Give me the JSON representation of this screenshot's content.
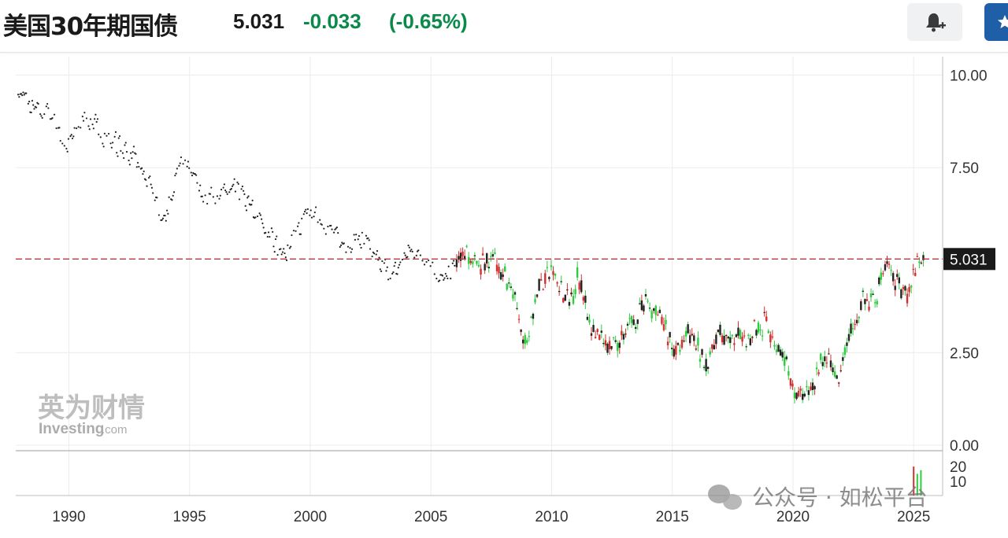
{
  "header": {
    "title": "美国30年期国债",
    "price": "5.031",
    "change": "-0.033",
    "change_pct": "(-0.65%)",
    "change_color": "#0a8a4a"
  },
  "buttons": {
    "alert_icon": "bell-plus-icon",
    "watchlist_icon": "star-icon"
  },
  "watermark": {
    "logo_cn": "英为财情",
    "logo_en": "Investing",
    "logo_en_suffix": ".com",
    "wechat": "公众号 · 如松平台",
    "wechat_icon": "wechat-icon"
  },
  "chart_data": {
    "type": "candlestick",
    "title": "",
    "xlabel": "",
    "ylabel": "",
    "x_ticks": [
      "1990",
      "1995",
      "2000",
      "2005",
      "2010",
      "2015",
      "2020",
      "2025"
    ],
    "y_ticks": [
      "10.00",
      "7.50",
      "5.031",
      "2.50",
      "0.00"
    ],
    "y_tick_values": [
      10.0,
      7.5,
      2.5,
      0.0
    ],
    "ylim": [
      0,
      10.5
    ],
    "xlim": [
      1987.8,
      2026.2
    ],
    "current_value": 5.031,
    "current_label": "5.031",
    "volume_ticks": [
      "20",
      "10"
    ],
    "colors": {
      "up": "#2ecc40",
      "down": "#d32f2f",
      "body": "#222222",
      "ref_line": "#b53a3a"
    },
    "grid": true,
    "monthly_yield_anchors": [
      [
        1987.9,
        9.7
      ],
      [
        1988.5,
        9.1
      ],
      [
        1989.3,
        8.9
      ],
      [
        1989.9,
        8.0
      ],
      [
        1990.7,
        8.9
      ],
      [
        1991.5,
        8.3
      ],
      [
        1992.3,
        8.0
      ],
      [
        1993.0,
        7.5
      ],
      [
        1993.9,
        6.1
      ],
      [
        1994.8,
        7.9
      ],
      [
        1995.6,
        6.7
      ],
      [
        1996.4,
        6.8
      ],
      [
        1997.0,
        6.9
      ],
      [
        1997.6,
        6.3
      ],
      [
        1998.3,
        5.8
      ],
      [
        1998.8,
        5.1
      ],
      [
        1999.5,
        5.8
      ],
      [
        2000.0,
        6.4
      ],
      [
        2000.8,
        5.8
      ],
      [
        2001.5,
        5.4
      ],
      [
        2002.2,
        5.7
      ],
      [
        2002.8,
        4.9
      ],
      [
        2003.4,
        4.6
      ],
      [
        2004.0,
        5.2
      ],
      [
        2004.6,
        5.2
      ],
      [
        2005.5,
        4.4
      ],
      [
        2006.4,
        5.2
      ],
      [
        2007.0,
        4.8
      ],
      [
        2007.5,
        5.1
      ],
      [
        2008.2,
        4.5
      ],
      [
        2008.9,
        2.7
      ],
      [
        2009.4,
        4.2
      ],
      [
        2010.0,
        4.7
      ],
      [
        2010.7,
        3.8
      ],
      [
        2011.1,
        4.6
      ],
      [
        2011.8,
        2.9
      ],
      [
        2012.5,
        2.6
      ],
      [
        2013.1,
        3.1
      ],
      [
        2013.9,
        3.9
      ],
      [
        2014.6,
        3.3
      ],
      [
        2015.1,
        2.4
      ],
      [
        2015.6,
        3.0
      ],
      [
        2016.5,
        2.2
      ],
      [
        2016.9,
        3.0
      ],
      [
        2017.6,
        2.8
      ],
      [
        2018.4,
        3.1
      ],
      [
        2018.9,
        3.3
      ],
      [
        2019.7,
        2.1
      ],
      [
        2020.2,
        1.3
      ],
      [
        2020.8,
        1.5
      ],
      [
        2021.2,
        2.3
      ],
      [
        2021.9,
        1.9
      ],
      [
        2022.4,
        3.0
      ],
      [
        2022.9,
        3.9
      ],
      [
        2023.4,
        3.9
      ],
      [
        2023.8,
        4.9
      ],
      [
        2024.3,
        4.4
      ],
      [
        2024.7,
        4.1
      ],
      [
        2025.1,
        4.8
      ],
      [
        2025.4,
        5.03
      ]
    ],
    "volume_bars": [
      {
        "x": 2025.0,
        "value": 16,
        "dir": "down"
      },
      {
        "x": 2025.15,
        "value": 12,
        "dir": "up"
      },
      {
        "x": 2025.3,
        "value": 14,
        "dir": "up"
      }
    ]
  }
}
